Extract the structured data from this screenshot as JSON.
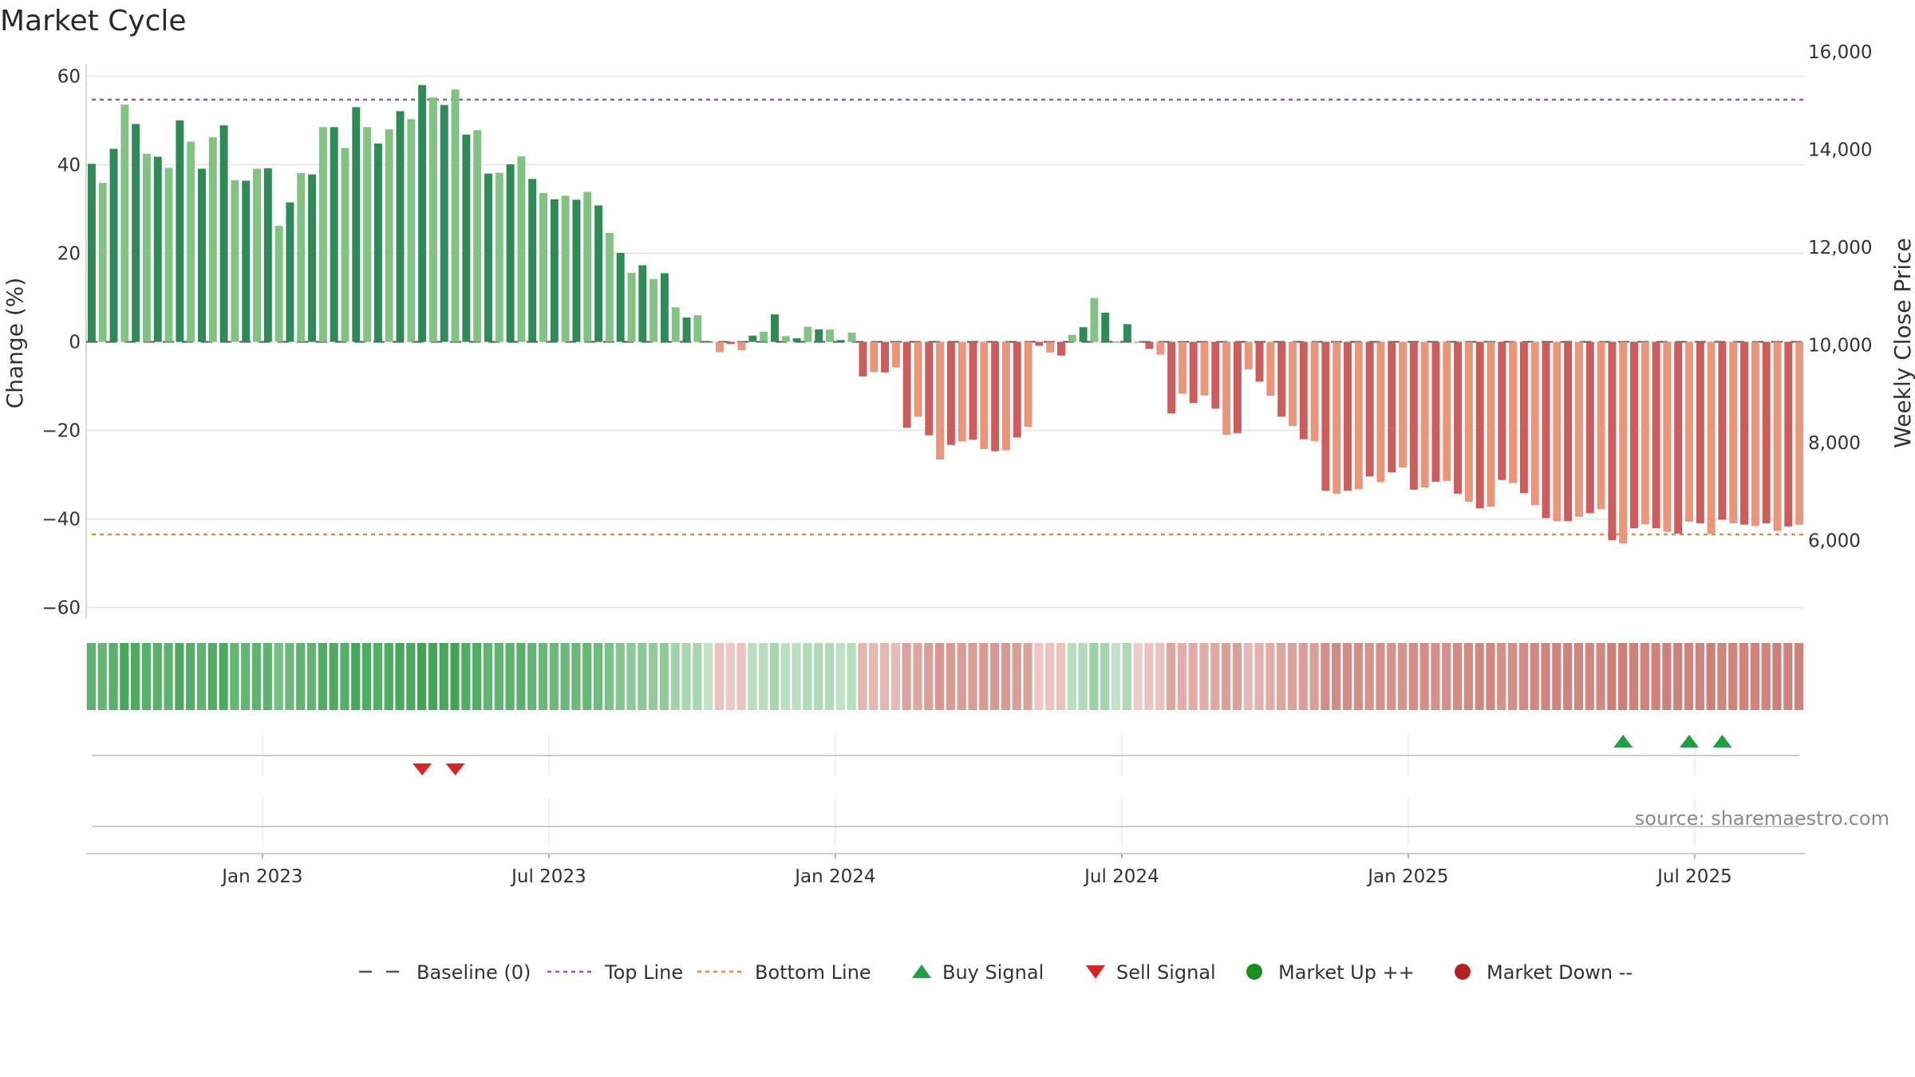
{
  "chart_data": {
    "type": "bar",
    "title": "Market Cycle",
    "ylabel_left": "Change (%)",
    "ylabel_right": "Weekly Close Price",
    "ylim_left": [
      -62,
      64
    ],
    "ylim_right": [
      5000,
      16500
    ],
    "left_ticks": [
      "60",
      "40",
      "20",
      "0",
      "−20",
      "−40",
      "−60"
    ],
    "left_tick_values": [
      60,
      40,
      20,
      0,
      -20,
      -40,
      -60
    ],
    "right_ticks": [
      "16,000",
      "14,000",
      "12,000",
      "10,000",
      "8,000",
      "6,000"
    ],
    "right_tick_values": [
      16000,
      14000,
      12000,
      10000,
      8000,
      6000
    ],
    "x_ticks": [
      "Jan 2023",
      "Jul 2023",
      "Jan 2024",
      "Jul 2024",
      "Jan 2025",
      "Jul 2025"
    ],
    "x_tick_weeks": [
      16,
      42,
      68,
      94,
      120,
      146
    ],
    "baseline": 0,
    "top_line": 54.7,
    "bottom_line": -43.5,
    "weekly_change": [
      40.2,
      35.9,
      43.6,
      53.6,
      49.2,
      42.5,
      41.8,
      39.3,
      50.0,
      45.2,
      39.1,
      46.2,
      48.9,
      36.5,
      36.4,
      39.1,
      39.2,
      26.2,
      31.5,
      38.1,
      37.8,
      48.5,
      48.5,
      43.8,
      53.0,
      48.5,
      44.8,
      48.0,
      52.1,
      50.3,
      58.0,
      55.2,
      53.5,
      57.0,
      46.8,
      47.8,
      38.0,
      38.2,
      40.1,
      41.9,
      36.8,
      33.6,
      32.2,
      33.0,
      32.1,
      33.9,
      30.8,
      24.6,
      20.1,
      15.6,
      17.3,
      14.2,
      15.5,
      7.8,
      5.5,
      6.0,
      0.1,
      -2.3,
      -0.5,
      -1.9,
      1.4,
      2.3,
      6.2,
      1.3,
      0.8,
      3.4,
      2.8,
      2.8,
      0.4,
      2.1,
      -7.8,
      -6.8,
      -6.9,
      -5.8,
      -19.4,
      -16.9,
      -21.1,
      -26.6,
      -23.3,
      -22.5,
      -22.1,
      -24.2,
      -24.7,
      -24.5,
      -21.6,
      -19.2,
      -0.9,
      -2.4,
      -3.1,
      1.6,
      3.3,
      9.9,
      6.6,
      0.1,
      4.0,
      -0.1,
      -1.6,
      -2.9,
      -16.2,
      -11.7,
      -13.8,
      -12.1,
      -15.1,
      -21.0,
      -20.6,
      -6.2,
      -9.0,
      -12.2,
      -16.9,
      -19.0,
      -22.0,
      -22.4,
      -33.6,
      -34.3,
      -33.6,
      -33.3,
      -30.4,
      -31.7,
      -29.5,
      -28.4,
      -33.4,
      -32.9,
      -31.6,
      -31.4,
      -34.3,
      -36.1,
      -37.6,
      -37.2,
      -31.2,
      -31.9,
      -34.2,
      -36.9,
      -39.8,
      -40.5,
      -40.5,
      -39.5,
      -38.7,
      -37.8,
      -44.8,
      -45.5,
      -42.1,
      -41.2,
      -42.1,
      -42.9,
      -43.3,
      -40.6,
      -41.0,
      -43.4,
      -40.2,
      -41.0,
      -41.3,
      -41.6,
      -41.0,
      -42.7,
      -41.7,
      -41.3
    ]
  },
  "colors": {
    "up_dark": "#2e8b57",
    "up_light": "#82c383",
    "down_dark": "#cd5c5c",
    "down_light": "#e9967a",
    "top_line": "#9b59b6",
    "bottom_line": "#e08d4a",
    "buy": "#1e9e45",
    "sell": "#d62728",
    "market_up": "#1e8c1e",
    "market_down": "#b22222"
  },
  "signals": {
    "buy_weeks": [
      139,
      145,
      148
    ],
    "sell_weeks": [
      30,
      33
    ]
  },
  "source": "source: sharemaestro.com",
  "legend": [
    {
      "label": "Baseline (0)",
      "icon": "dash-line-icon"
    },
    {
      "label": "Top Line",
      "icon": "dotted-line-purple-icon"
    },
    {
      "label": "Bottom Line",
      "icon": "dotted-line-orange-icon"
    },
    {
      "label": "Buy Signal",
      "icon": "triangle-up-icon"
    },
    {
      "label": "Sell Signal",
      "icon": "triangle-down-icon"
    },
    {
      "label": "Market Up ++",
      "icon": "circle-green-icon"
    },
    {
      "label": "Market Down --",
      "icon": "circle-red-icon"
    }
  ]
}
